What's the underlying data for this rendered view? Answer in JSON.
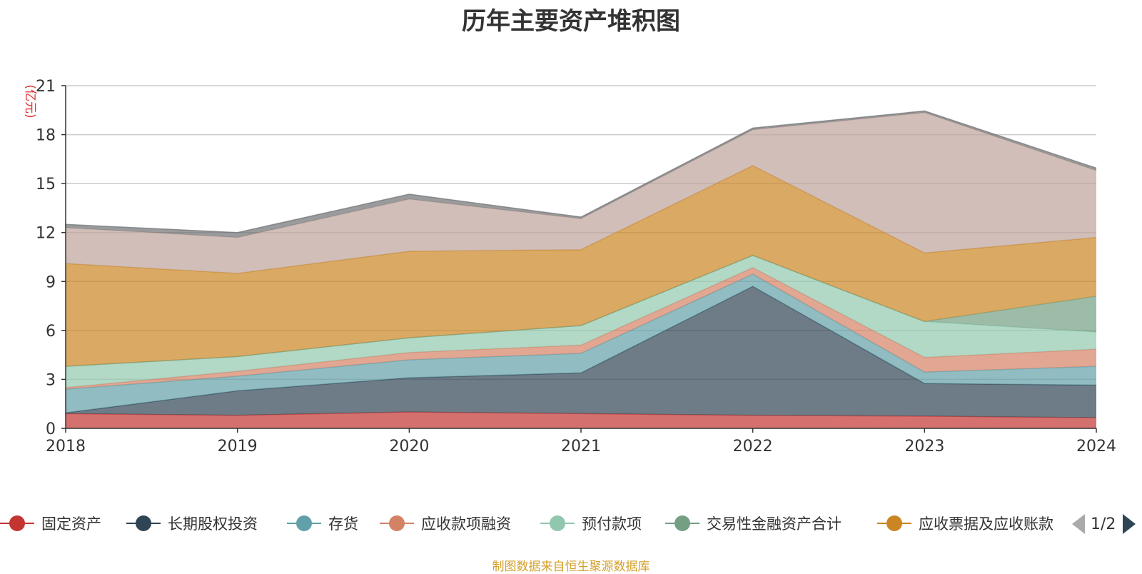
{
  "chart_data": {
    "type": "area",
    "stacked": true,
    "title": "历年主要资产堆积图",
    "ylabel": "(亿元)",
    "categories": [
      "2018",
      "2019",
      "2020",
      "2021",
      "2022",
      "2023",
      "2024"
    ],
    "ylim": [
      0,
      21
    ],
    "yticks": [
      0,
      3,
      6,
      9,
      12,
      15,
      18,
      21
    ],
    "grid": true,
    "series": [
      {
        "name": "固定资产",
        "color": "#c23531",
        "values": [
          0.9,
          0.8,
          1.0,
          0.9,
          0.8,
          0.75,
          0.65
        ]
      },
      {
        "name": "长期股权投资",
        "color": "#2f4554",
        "values": [
          0.05,
          1.5,
          2.1,
          2.5,
          7.9,
          2.0,
          2.0
        ]
      },
      {
        "name": "存货",
        "color": "#61a0a8",
        "values": [
          1.45,
          0.9,
          1.1,
          1.2,
          0.75,
          0.7,
          1.15
        ]
      },
      {
        "name": "应收款项融资",
        "color": "#d48265",
        "values": [
          0.1,
          0.3,
          0.45,
          0.5,
          0.4,
          0.9,
          1.05
        ]
      },
      {
        "name": "预付款项",
        "color": "#91c7ae",
        "values": [
          1.3,
          0.9,
          0.9,
          1.2,
          0.75,
          2.2,
          1.05
        ]
      },
      {
        "name": "交易性金融资产合计",
        "color": "#749f83",
        "values": [
          0,
          0,
          0,
          0,
          0,
          0,
          2.2
        ]
      },
      {
        "name": "应收票据及应收账款",
        "color": "#ca8622",
        "values": [
          6.3,
          5.1,
          5.3,
          4.65,
          5.5,
          4.2,
          3.6
        ]
      },
      {
        "name": "",
        "color": "#bda29a",
        "values": [
          2.2,
          2.2,
          3.2,
          1.9,
          2.2,
          8.6,
          4.1
        ]
      },
      {
        "name": "",
        "color": "#6e7074",
        "values": [
          0.2,
          0.3,
          0.3,
          0.1,
          0.1,
          0.1,
          0.15
        ]
      }
    ]
  },
  "legend": {
    "page_indicator": "1/2"
  },
  "footer": {
    "source": "制图数据来自恒生聚源数据库"
  }
}
